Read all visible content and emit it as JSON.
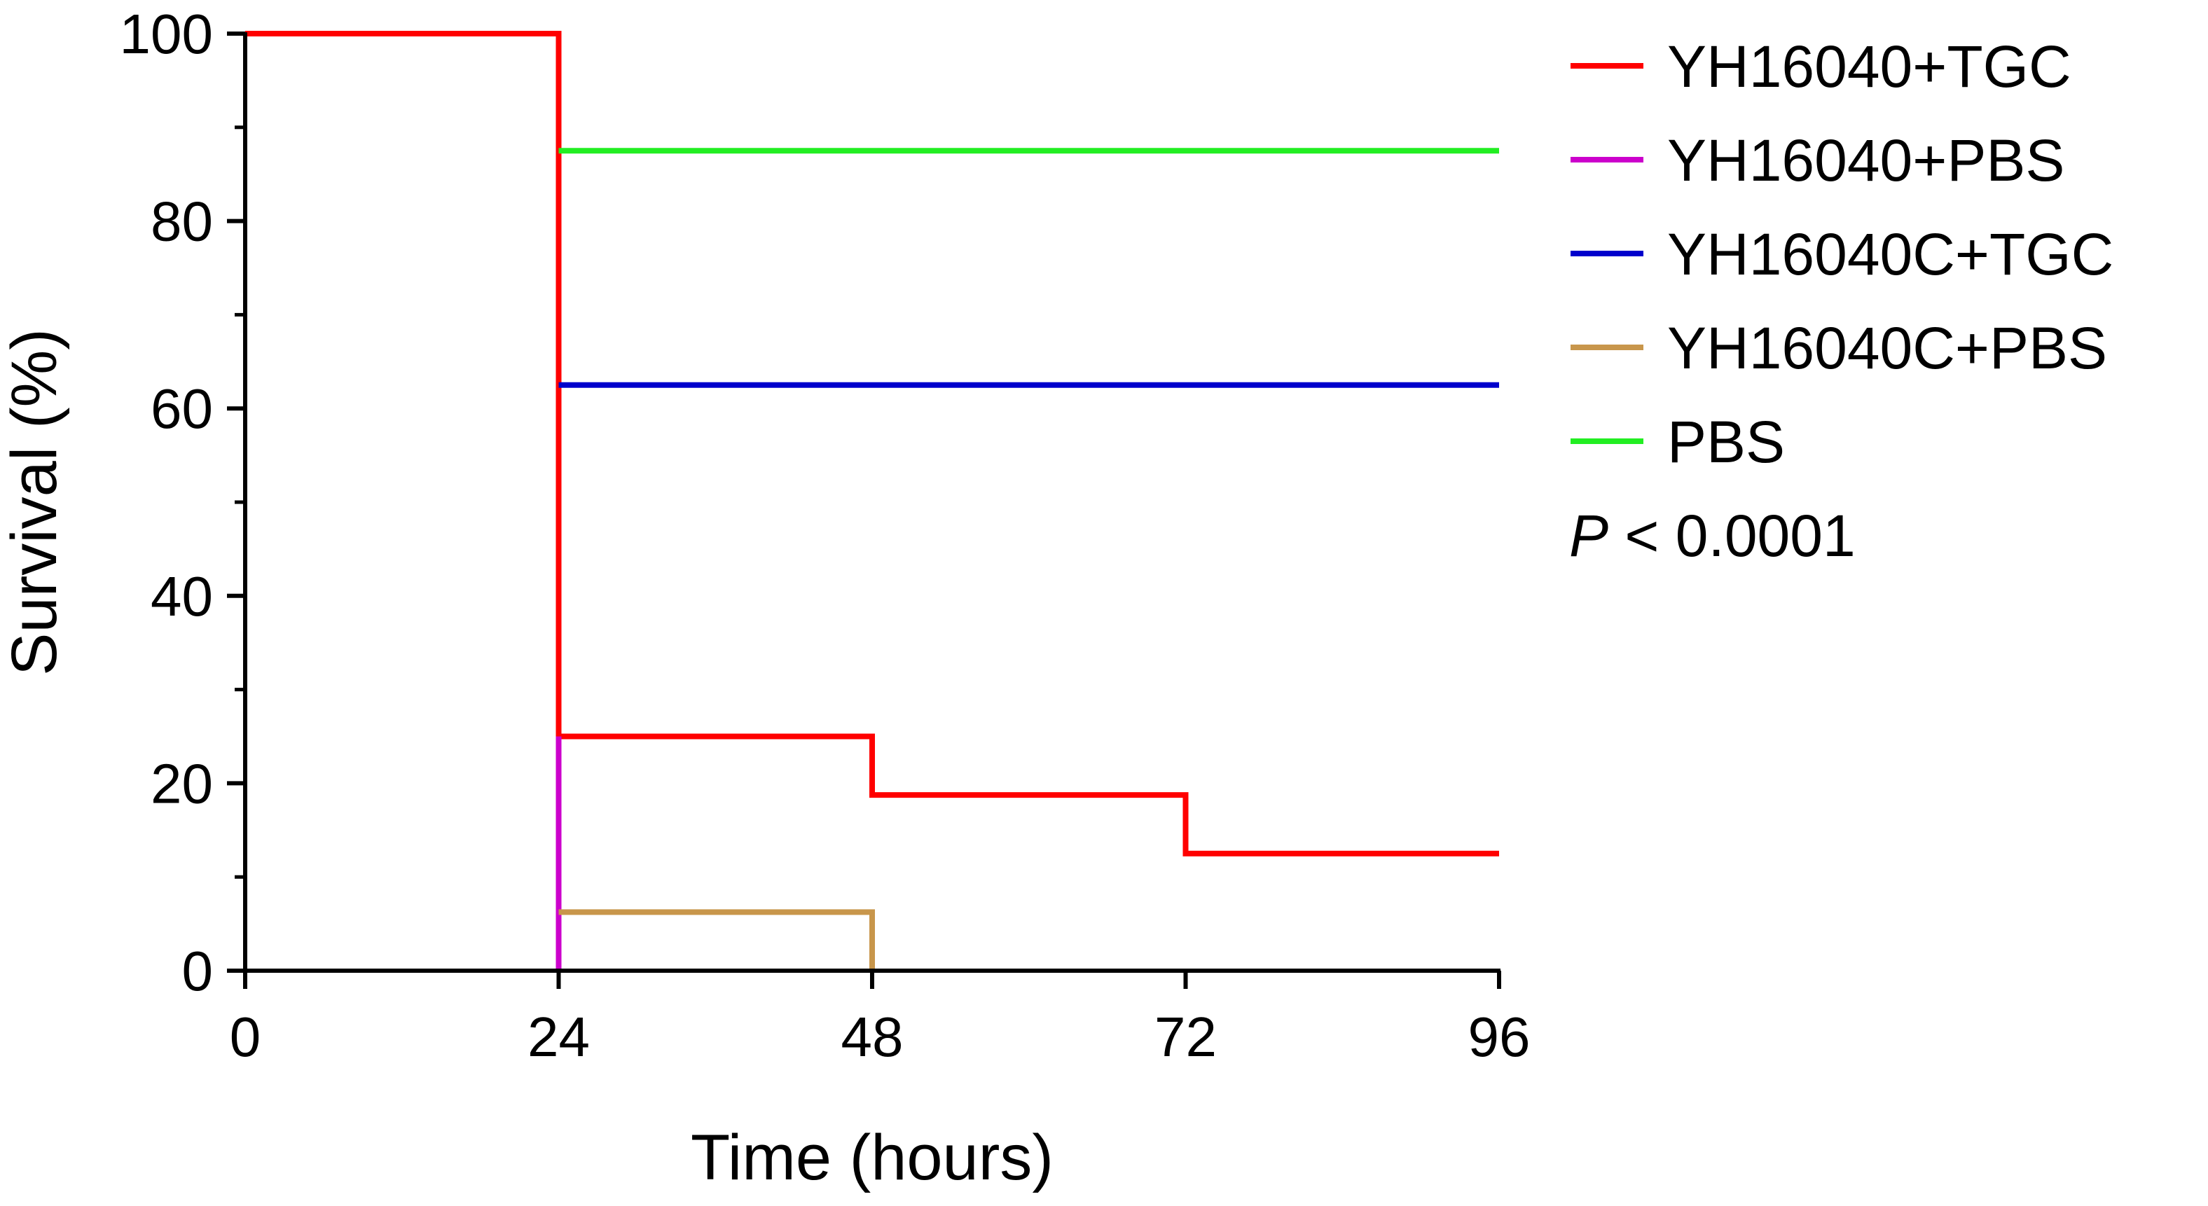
{
  "chart_data": {
    "type": "line",
    "step": true,
    "xlabel": "Time (hours)",
    "ylabel": "Survival (%)",
    "xlim": [
      0,
      96
    ],
    "ylim": [
      0,
      100
    ],
    "xticks": [
      0,
      24,
      48,
      72,
      96
    ],
    "yticks": [
      0,
      20,
      40,
      60,
      80,
      100
    ],
    "legend_position": "right",
    "annotation": {
      "prefix": "P",
      "text": " < 0.0001"
    },
    "series": [
      {
        "name": "YH16040+TGC",
        "color": "#ff0000",
        "x": [
          0,
          24,
          24,
          48,
          48,
          72,
          72,
          96
        ],
        "y": [
          100,
          100,
          25,
          25,
          18.75,
          18.75,
          12.5,
          12.5
        ]
      },
      {
        "name": "YH16040+PBS",
        "color": "#cc00cc",
        "x": [
          24,
          24
        ],
        "y": [
          25,
          0
        ]
      },
      {
        "name": "YH16040C+TGC",
        "color": "#0000cc",
        "x": [
          24,
          96
        ],
        "y": [
          62.5,
          62.5
        ]
      },
      {
        "name": "YH16040C+PBS",
        "color": "#c8964b",
        "x": [
          24,
          48,
          48
        ],
        "y": [
          6.25,
          6.25,
          0
        ]
      },
      {
        "name": "PBS",
        "color": "#22ee22",
        "x": [
          24,
          96
        ],
        "y": [
          87.5,
          87.5
        ]
      }
    ]
  }
}
